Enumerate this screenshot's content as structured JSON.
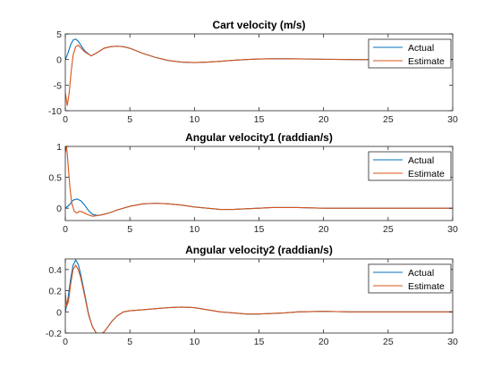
{
  "colors": {
    "actual": "#0072bd",
    "estimate": "#d95319",
    "axis": "#262626"
  },
  "chart_data": [
    {
      "type": "line",
      "title": "Cart velocity (m/s)",
      "xlim": [
        0,
        30
      ],
      "ylim": [
        -10,
        5
      ],
      "xticks": [
        0,
        5,
        10,
        15,
        20,
        25,
        30
      ],
      "yticks": [
        -10,
        -5,
        0,
        5
      ],
      "grid": false,
      "legend": "top-right",
      "series": [
        {
          "name": "Actual",
          "x": [
            0,
            0.2,
            0.4,
            0.6,
            0.8,
            1.0,
            1.2,
            1.5,
            2,
            2.5,
            3,
            3.5,
            4,
            4.5,
            5,
            6,
            7,
            8,
            9,
            10,
            11,
            12,
            13,
            14,
            15,
            16,
            17,
            18,
            20,
            22,
            24,
            26,
            28,
            30
          ],
          "y": [
            0,
            1.2,
            2.8,
            3.8,
            4.0,
            3.6,
            2.8,
            1.7,
            0.7,
            1.4,
            2.2,
            2.5,
            2.6,
            2.5,
            2.2,
            1.2,
            0.4,
            -0.2,
            -0.5,
            -0.6,
            -0.5,
            -0.35,
            -0.15,
            0,
            0.1,
            0.15,
            0.15,
            0.12,
            0.05,
            0,
            -0.02,
            0,
            0,
            0
          ]
        },
        {
          "name": "Estimate",
          "x": [
            0,
            0.15,
            0.3,
            0.45,
            0.6,
            0.8,
            1.0,
            1.2,
            1.5,
            2,
            2.5,
            3,
            3.5,
            4,
            4.5,
            5,
            6,
            7,
            8,
            9,
            10,
            11,
            12,
            13,
            14,
            15,
            16,
            17,
            18,
            20,
            22,
            24,
            26,
            28,
            30
          ],
          "y": [
            -6.5,
            -9.0,
            -6.5,
            -2.5,
            0.8,
            2.5,
            2.8,
            2.3,
            1.5,
            0.7,
            1.4,
            2.2,
            2.5,
            2.6,
            2.5,
            2.2,
            1.2,
            0.4,
            -0.2,
            -0.5,
            -0.6,
            -0.5,
            -0.35,
            -0.15,
            0,
            0.1,
            0.15,
            0.15,
            0.12,
            0.05,
            0,
            -0.02,
            0,
            0,
            0
          ]
        }
      ]
    },
    {
      "type": "line",
      "title": "Angular velocity1  (raddian/s)",
      "xlim": [
        0,
        30
      ],
      "ylim": [
        -0.2,
        1
      ],
      "xticks": [
        0,
        5,
        10,
        15,
        20,
        25,
        30
      ],
      "yticks": [
        0,
        0.5,
        1
      ],
      "grid": false,
      "legend": "top-right",
      "series": [
        {
          "name": "Actual",
          "x": [
            0,
            0.3,
            0.6,
            0.9,
            1.2,
            1.5,
            1.8,
            2.1,
            2.5,
            3,
            3.5,
            4,
            5,
            6,
            7,
            8,
            9,
            10,
            11,
            12,
            13,
            14,
            15,
            16,
            17,
            18,
            20,
            22,
            24,
            26,
            28,
            30
          ],
          "y": [
            0,
            0.05,
            0.13,
            0.15,
            0.12,
            0.05,
            -0.04,
            -0.1,
            -0.12,
            -0.1,
            -0.07,
            -0.03,
            0.03,
            0.07,
            0.08,
            0.07,
            0.05,
            0.02,
            0,
            -0.02,
            -0.02,
            -0.01,
            0,
            0.01,
            0.01,
            0.01,
            0,
            0,
            0,
            0,
            0,
            0
          ]
        },
        {
          "name": "Estimate",
          "x": [
            0,
            0.1,
            0.2,
            0.35,
            0.5,
            0.7,
            0.9,
            1.1,
            1.3,
            1.5,
            1.8,
            2.1,
            2.5,
            3,
            3.5,
            4,
            5,
            6,
            7,
            8,
            9,
            10,
            11,
            12,
            13,
            14,
            15,
            16,
            17,
            18,
            20,
            22,
            24,
            26,
            28,
            30
          ],
          "y": [
            0.9,
            1.0,
            0.75,
            0.35,
            0.08,
            -0.05,
            -0.08,
            -0.05,
            -0.06,
            -0.08,
            -0.11,
            -0.13,
            -0.12,
            -0.1,
            -0.07,
            -0.03,
            0.03,
            0.07,
            0.08,
            0.07,
            0.05,
            0.02,
            0,
            -0.02,
            -0.02,
            -0.01,
            0,
            0.01,
            0.01,
            0.01,
            0,
            0,
            0,
            0,
            0,
            0
          ]
        }
      ]
    },
    {
      "type": "line",
      "title": "Angular velocity2  (raddian/s)",
      "xlim": [
        0,
        30
      ],
      "ylim": [
        -0.2,
        0.5
      ],
      "xticks": [
        0,
        5,
        10,
        15,
        20,
        25,
        30
      ],
      "yticks": [
        -0.2,
        0,
        0.2,
        0.4
      ],
      "grid": false,
      "legend": "top-right",
      "series": [
        {
          "name": "Actual",
          "x": [
            0,
            0.2,
            0.4,
            0.6,
            0.8,
            1.0,
            1.2,
            1.5,
            1.8,
            2.1,
            2.4,
            2.7,
            3,
            3.3,
            3.6,
            4,
            4.5,
            5,
            6,
            7,
            8,
            9,
            10,
            11,
            12,
            13,
            14,
            15,
            16,
            17,
            18,
            20,
            22,
            24,
            26,
            28,
            30
          ],
          "y": [
            0,
            0.12,
            0.3,
            0.44,
            0.49,
            0.45,
            0.35,
            0.17,
            -0.02,
            -0.14,
            -0.2,
            -0.21,
            -0.19,
            -0.14,
            -0.09,
            -0.04,
            0,
            0.01,
            0.02,
            0.03,
            0.04,
            0.045,
            0.04,
            0.02,
            0,
            -0.01,
            -0.02,
            -0.02,
            -0.015,
            -0.01,
            0,
            0.005,
            0,
            0,
            0,
            0,
            0
          ]
        },
        {
          "name": "Estimate",
          "x": [
            0,
            0.1,
            0.25,
            0.4,
            0.6,
            0.8,
            1.0,
            1.2,
            1.5,
            1.8,
            2.1,
            2.4,
            2.7,
            3,
            3.3,
            3.6,
            4,
            4.5,
            5,
            6,
            7,
            8,
            9,
            10,
            11,
            12,
            13,
            14,
            15,
            16,
            17,
            18,
            20,
            22,
            24,
            26,
            28,
            30
          ],
          "y": [
            0.18,
            0.05,
            0.1,
            0.25,
            0.4,
            0.44,
            0.4,
            0.32,
            0.15,
            -0.03,
            -0.14,
            -0.2,
            -0.21,
            -0.19,
            -0.14,
            -0.09,
            -0.04,
            0,
            0.01,
            0.02,
            0.03,
            0.04,
            0.045,
            0.04,
            0.02,
            0,
            -0.01,
            -0.02,
            -0.02,
            -0.015,
            -0.01,
            0,
            0.005,
            0,
            0,
            0,
            0,
            0
          ]
        }
      ]
    }
  ]
}
